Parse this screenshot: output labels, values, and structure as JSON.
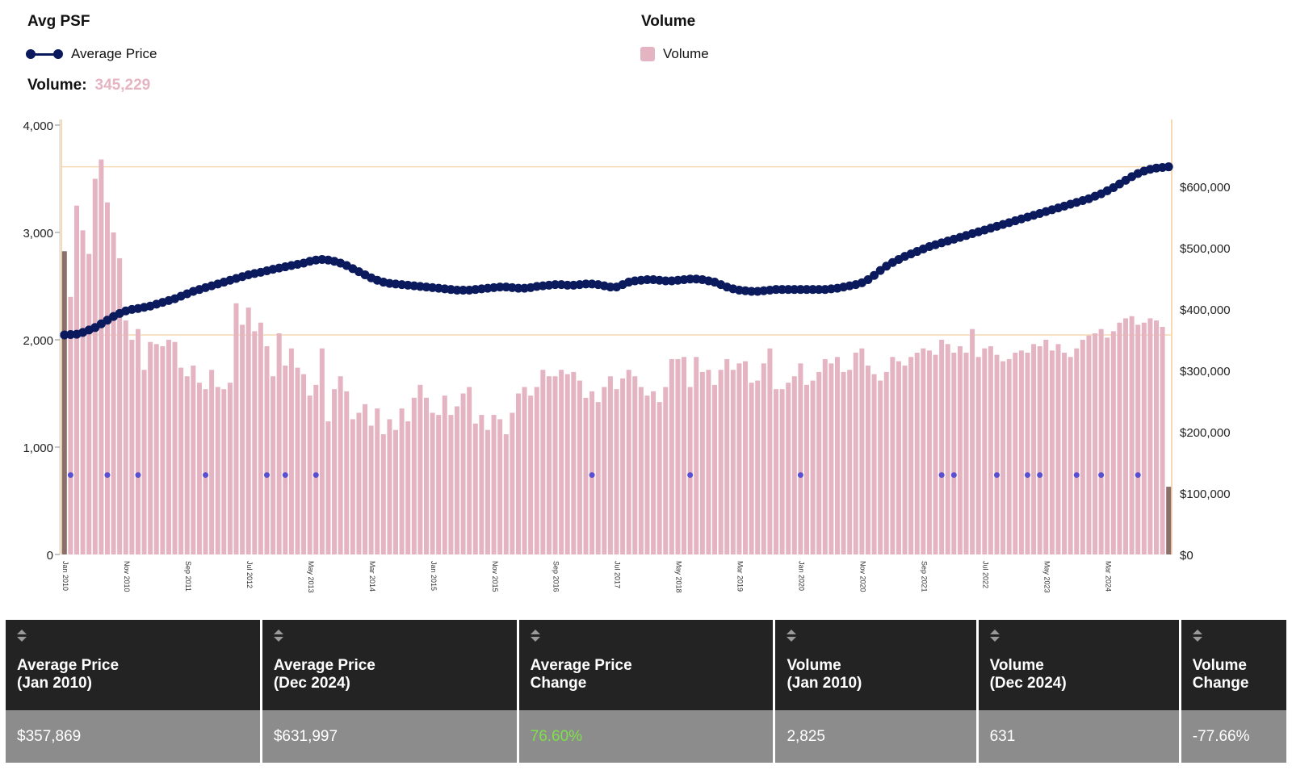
{
  "legend": {
    "left_title": "Avg PSF",
    "right_title": "Volume",
    "price_label": "Average Price",
    "volume_label": "Volume"
  },
  "volume_summary": {
    "label": "Volume:",
    "value": "345,229"
  },
  "colors": {
    "price_line": "#0b1a5c",
    "volume_bar": "#e5b4c2",
    "highlight_bar": "#8a6f6b",
    "marker": "#5a4fd0",
    "reference_line": "#f6d9b4",
    "positive": "#7ee04a"
  },
  "chart_data": {
    "type": "bar",
    "left_axis": {
      "ticks": [
        "0",
        "1,000",
        "2,000",
        "3,000",
        "4,000"
      ],
      "range": [
        0,
        4000
      ]
    },
    "right_axis": {
      "ticks": [
        "$0",
        "$100,000",
        "$200,000",
        "$300,000",
        "$400,000",
        "$500,000",
        "$600,000"
      ],
      "range": [
        0,
        700000
      ]
    },
    "x_labels": [
      "Jan 2010",
      "Nov 2010",
      "Sep 2011",
      "Jul 2012",
      "May 2013",
      "Mar 2014",
      "Jan 2015",
      "Nov 2015",
      "Sep 2016",
      "Jul 2017",
      "May 2018",
      "Mar 2019",
      "Jan 2020",
      "Nov 2020",
      "Sep 2021",
      "Jul 2022",
      "May 2023",
      "Mar 2024"
    ],
    "x_label_months": [
      0,
      10,
      20,
      30,
      40,
      50,
      60,
      70,
      80,
      90,
      100,
      110,
      120,
      130,
      140,
      150,
      160,
      170
    ],
    "start": "Jan 2010",
    "end": "Dec 2024",
    "grid": false,
    "series": [
      {
        "name": "Volume",
        "axis": "left",
        "type": "bar",
        "values": [
          2825,
          2400,
          3250,
          3020,
          2800,
          3500,
          3680,
          3280,
          3000,
          2760,
          2180,
          2000,
          2100,
          1720,
          1980,
          1960,
          1940,
          2000,
          1980,
          1740,
          1660,
          1760,
          1600,
          1540,
          1720,
          1560,
          1540,
          1600,
          2340,
          2140,
          2300,
          2080,
          2160,
          1940,
          1660,
          2060,
          1760,
          1920,
          1740,
          1680,
          1480,
          1580,
          1920,
          1240,
          1540,
          1660,
          1520,
          1260,
          1320,
          1400,
          1200,
          1360,
          1120,
          1260,
          1160,
          1360,
          1240,
          1460,
          1580,
          1460,
          1320,
          1300,
          1480,
          1300,
          1380,
          1500,
          1560,
          1220,
          1300,
          1160,
          1300,
          1260,
          1120,
          1320,
          1500,
          1560,
          1480,
          1560,
          1720,
          1660,
          1660,
          1720,
          1680,
          1700,
          1620,
          1460,
          1520,
          1420,
          1560,
          1660,
          1540,
          1640,
          1720,
          1660,
          1560,
          1480,
          1520,
          1420,
          1560,
          1820,
          1820,
          1840,
          1560,
          1840,
          1700,
          1720,
          1580,
          1720,
          1820,
          1720,
          1780,
          1800,
          1600,
          1620,
          1780,
          1920,
          1540,
          1540,
          1600,
          1660,
          1780,
          1580,
          1620,
          1700,
          1820,
          1780,
          1840,
          1700,
          1720,
          1880,
          1920,
          1760,
          1680,
          1620,
          1700,
          1840,
          1800,
          1760,
          1840,
          1880,
          1920,
          1900,
          1860,
          2000,
          1960,
          1880,
          1940,
          1880,
          2100,
          1840,
          1920,
          1940,
          1860,
          1800,
          1820,
          1880,
          1900,
          1880,
          1960,
          1940,
          2000,
          1900,
          1960,
          1880,
          1840,
          1920,
          2000,
          2040,
          2060,
          2100,
          2020,
          2080,
          2160,
          2200,
          2220,
          2140,
          2160,
          2200,
          2180,
          2120,
          631
        ]
      },
      {
        "name": "Average Price",
        "axis": "right",
        "type": "line",
        "values": [
          357869,
          358500,
          359000,
          362000,
          366000,
          370000,
          376000,
          382000,
          388000,
          393000,
          397000,
          399500,
          401000,
          403000,
          405000,
          408000,
          411000,
          414000,
          417000,
          421000,
          425000,
          429000,
          432000,
          435000,
          438000,
          441000,
          444000,
          447000,
          450000,
          453000,
          456000,
          458000,
          460000,
          462500,
          465000,
          467000,
          469000,
          471000,
          473000,
          475000,
          478000,
          480000,
          481000,
          480000,
          478000,
          475000,
          471000,
          466000,
          461000,
          456000,
          451000,
          447000,
          444000,
          442000,
          441000,
          440000,
          439000,
          438000,
          437000,
          436000,
          435000,
          434000,
          433000,
          432000,
          431000,
          431000,
          431000,
          432000,
          433000,
          434000,
          435000,
          436000,
          436000,
          435000,
          434000,
          434000,
          435000,
          437000,
          438000,
          439000,
          440000,
          440000,
          439000,
          439000,
          440000,
          441000,
          441000,
          440000,
          438000,
          436000,
          436000,
          440000,
          444000,
          446000,
          447000,
          448000,
          448000,
          447000,
          446000,
          446000,
          447000,
          448000,
          449000,
          449000,
          448000,
          446000,
          444000,
          440000,
          436000,
          433000,
          431000,
          430000,
          429000,
          429000,
          430000,
          431000,
          432000,
          432000,
          432000,
          432000,
          432000,
          432000,
          432000,
          432000,
          432000,
          433000,
          434000,
          436000,
          438000,
          440000,
          443000,
          448000,
          455000,
          463000,
          470000,
          476000,
          481000,
          486000,
          490000,
          494000,
          498000,
          502000,
          505000,
          508000,
          511000,
          514000,
          517000,
          520000,
          523000,
          526000,
          529000,
          532000,
          535000,
          538000,
          541000,
          544000,
          547000,
          550000,
          553000,
          556000,
          559000,
          562000,
          565000,
          568000,
          571000,
          574000,
          577000,
          580000,
          584000,
          588000,
          593000,
          598000,
          604000,
          610000,
          616000,
          621000,
          625000,
          628000,
          630000,
          631000,
          631997
        ]
      }
    ],
    "markers_at_months": [
      1,
      7,
      12,
      23,
      33,
      36,
      41,
      86,
      102,
      120,
      143,
      145,
      152,
      157,
      159,
      165,
      169,
      175
    ]
  },
  "table": {
    "columns": [
      {
        "label": "Average Price\n(Jan 2010)",
        "value": "$357,869"
      },
      {
        "label": "Average Price\n(Dec 2024)",
        "value": "$631,997"
      },
      {
        "label": "Average Price\nChange",
        "value": "76.60%",
        "positive": true
      },
      {
        "label": "Volume\n(Jan 2010)",
        "value": "2,825"
      },
      {
        "label": "Volume\n(Dec 2024)",
        "value": "631"
      },
      {
        "label": "Volume\nChange",
        "value": "-77.66%"
      }
    ]
  }
}
